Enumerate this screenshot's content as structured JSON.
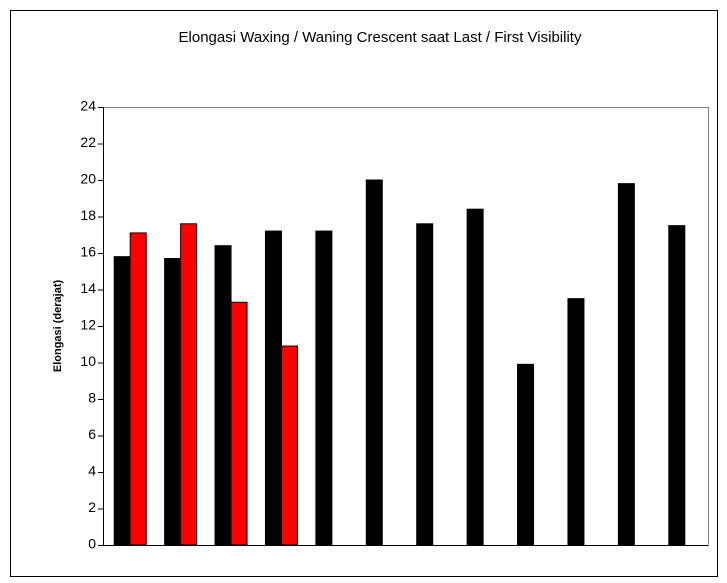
{
  "chart_data": {
    "type": "bar",
    "title": "Elongasi Waxing / Waning Crescent saat Last / First Visibility",
    "y_label": "Elongasi (derajat)",
    "categories": [
      null,
      null,
      null,
      null,
      null,
      null,
      null,
      null,
      null,
      null,
      null,
      null
    ],
    "series": [
      {
        "color": "#000000",
        "values": [
          15.8,
          15.7,
          16.4,
          17.2,
          17.2,
          20.0,
          17.6,
          18.4,
          9.9,
          13.5,
          19.8,
          17.5
        ]
      },
      {
        "color": "#ff0000",
        "values": [
          17.1,
          17.6,
          13.3,
          10.9,
          null,
          null,
          null,
          null,
          null,
          null,
          null,
          null
        ]
      }
    ],
    "ylim": [
      0,
      24
    ],
    "yticks": [
      0,
      2,
      4,
      6,
      8,
      10,
      12,
      14,
      16,
      18,
      20,
      22,
      24
    ],
    "grid": false
  }
}
